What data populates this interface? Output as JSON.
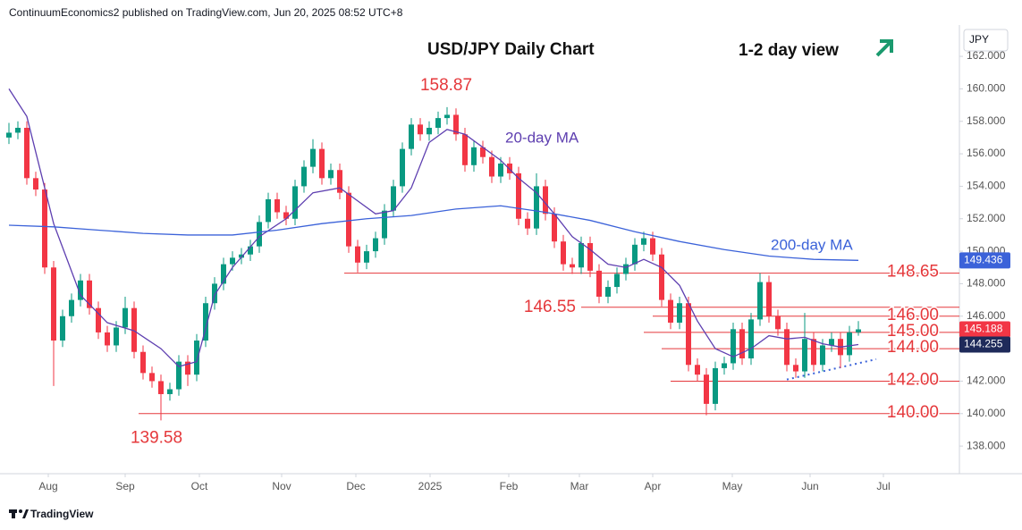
{
  "header": {
    "publisher": "ContinuumEconomics2 published on TradingView.com, Jun 20, 2025 08:52 UTC+8",
    "currency": "JPY"
  },
  "footer": {
    "brand": "TradingView"
  },
  "chart_data": {
    "type": "candlestick",
    "title": "USD/JPY Daily Chart",
    "subtitle": "1-2 day view",
    "up_color": "#089981",
    "down_color": "#f23645",
    "level_color": "#e5383b",
    "xlim": [
      -1,
      106.3
    ],
    "ylim": [
      136.3,
      163.93
    ],
    "yticks": [
      {
        "value": 138,
        "label": "138.000"
      },
      {
        "value": 140,
        "label": "140.000"
      },
      {
        "value": 142,
        "label": "142.000"
      },
      {
        "value": 144,
        "label": "144.000"
      },
      {
        "value": 146,
        "label": "146.000"
      },
      {
        "value": 148,
        "label": "148.000"
      },
      {
        "value": 150,
        "label": "150.000"
      },
      {
        "value": 152,
        "label": "152.000"
      },
      {
        "value": 154,
        "label": "154.000"
      },
      {
        "value": 156,
        "label": "156.000"
      },
      {
        "value": 158,
        "label": "158.000"
      },
      {
        "value": 160,
        "label": "160.000"
      },
      {
        "value": 162,
        "label": "162.000"
      }
    ],
    "xticks": [
      {
        "value": 4.4,
        "label": "Aug"
      },
      {
        "value": 13,
        "label": "Sep"
      },
      {
        "value": 21.3,
        "label": "Oct"
      },
      {
        "value": 30.5,
        "label": "Nov"
      },
      {
        "value": 38.8,
        "label": "Dec"
      },
      {
        "value": 47.1,
        "label": "2025"
      },
      {
        "value": 55.9,
        "label": "Feb"
      },
      {
        "value": 63.8,
        "label": "Mar"
      },
      {
        "value": 72,
        "label": "Apr"
      },
      {
        "value": 80.9,
        "label": "May"
      },
      {
        "value": 89.6,
        "label": "Jun"
      },
      {
        "value": 97.8,
        "label": "Jul"
      }
    ],
    "candles": [
      [
        157.0,
        157.9,
        156.6,
        157.3
      ],
      [
        157.3,
        158.0,
        156.9,
        157.6
      ],
      [
        157.6,
        158.0,
        154.1,
        154.5
      ],
      [
        154.5,
        154.9,
        153.4,
        153.8
      ],
      [
        153.8,
        154.2,
        148.6,
        149.0
      ],
      [
        149.0,
        149.4,
        141.7,
        144.5
      ],
      [
        144.5,
        146.4,
        144.1,
        146.0
      ],
      [
        146.0,
        147.4,
        145.6,
        147.0
      ],
      [
        147.0,
        148.6,
        146.6,
        148.2
      ],
      [
        148.2,
        148.6,
        146.1,
        146.5
      ],
      [
        146.5,
        146.9,
        144.6,
        145.0
      ],
      [
        145.0,
        145.4,
        143.8,
        144.2
      ],
      [
        144.2,
        145.7,
        143.8,
        145.3
      ],
      [
        145.3,
        147.2,
        144.9,
        146.5
      ],
      [
        146.5,
        146.9,
        143.4,
        143.8
      ],
      [
        143.8,
        144.2,
        142.1,
        142.5
      ],
      [
        142.5,
        142.9,
        141.6,
        142.0
      ],
      [
        142.0,
        142.4,
        139.58,
        141.2
      ],
      [
        141.2,
        141.9,
        140.8,
        141.5
      ],
      [
        141.5,
        143.6,
        141.1,
        143.2
      ],
      [
        143.2,
        143.6,
        141.7,
        142.4
      ],
      [
        142.4,
        144.9,
        142.0,
        144.5
      ],
      [
        144.5,
        147.2,
        144.1,
        146.8
      ],
      [
        146.8,
        148.4,
        146.4,
        148.0
      ],
      [
        148.0,
        149.6,
        147.6,
        149.2
      ],
      [
        149.2,
        150.0,
        148.8,
        149.6
      ],
      [
        149.6,
        150.2,
        149.2,
        149.8
      ],
      [
        149.8,
        150.7,
        149.4,
        150.3
      ],
      [
        150.3,
        152.2,
        149.9,
        151.8
      ],
      [
        151.8,
        153.6,
        151.4,
        153.2
      ],
      [
        153.2,
        153.6,
        152.0,
        152.4
      ],
      [
        152.4,
        152.8,
        151.6,
        152.0
      ],
      [
        152.0,
        154.4,
        151.6,
        154.0
      ],
      [
        154.0,
        155.6,
        153.6,
        155.2
      ],
      [
        155.2,
        156.9,
        154.8,
        156.3
      ],
      [
        156.3,
        156.7,
        154.1,
        154.5
      ],
      [
        154.5,
        155.4,
        154.1,
        155.0
      ],
      [
        155.0,
        155.4,
        153.2,
        153.6
      ],
      [
        153.6,
        154.0,
        149.9,
        150.3
      ],
      [
        150.3,
        150.7,
        148.7,
        149.3
      ],
      [
        149.3,
        150.4,
        148.9,
        150.0
      ],
      [
        150.0,
        151.2,
        149.6,
        150.8
      ],
      [
        150.8,
        152.9,
        150.4,
        152.5
      ],
      [
        152.5,
        154.4,
        152.1,
        154.0
      ],
      [
        154.0,
        156.7,
        153.6,
        156.3
      ],
      [
        156.3,
        158.2,
        155.9,
        157.8
      ],
      [
        157.8,
        158.2,
        156.8,
        157.2
      ],
      [
        157.2,
        158.0,
        156.8,
        157.6
      ],
      [
        157.6,
        158.6,
        157.2,
        158.2
      ],
      [
        158.2,
        158.87,
        157.8,
        158.4
      ],
      [
        158.4,
        158.8,
        156.8,
        157.2
      ],
      [
        157.2,
        157.6,
        154.9,
        155.3
      ],
      [
        155.3,
        156.8,
        154.9,
        156.4
      ],
      [
        156.4,
        156.8,
        155.4,
        155.8
      ],
      [
        155.8,
        156.2,
        154.2,
        154.6
      ],
      [
        154.6,
        155.8,
        154.2,
        155.4
      ],
      [
        155.4,
        155.8,
        154.4,
        154.8
      ],
      [
        154.8,
        155.2,
        151.6,
        152.0
      ],
      [
        152.0,
        152.4,
        151.0,
        151.4
      ],
      [
        151.4,
        154.8,
        151.0,
        154.0
      ],
      [
        154.0,
        154.4,
        151.9,
        152.3
      ],
      [
        152.3,
        152.7,
        150.2,
        150.6
      ],
      [
        150.6,
        151.0,
        148.8,
        149.2
      ],
      [
        149.2,
        149.6,
        148.6,
        149.0
      ],
      [
        149.0,
        150.9,
        148.6,
        150.5
      ],
      [
        150.5,
        150.9,
        148.4,
        148.8
      ],
      [
        148.8,
        149.2,
        146.8,
        147.2
      ],
      [
        147.2,
        148.2,
        146.8,
        147.8
      ],
      [
        147.8,
        149.0,
        147.4,
        148.6
      ],
      [
        148.6,
        149.6,
        148.2,
        149.2
      ],
      [
        149.2,
        150.8,
        148.8,
        150.4
      ],
      [
        150.4,
        151.2,
        150.0,
        150.8
      ],
      [
        150.8,
        151.2,
        149.4,
        149.8
      ],
      [
        149.8,
        150.2,
        146.6,
        147.0
      ],
      [
        147.0,
        147.4,
        145.2,
        145.6
      ],
      [
        145.6,
        147.2,
        145.2,
        146.8
      ],
      [
        146.8,
        147.2,
        142.6,
        143.0
      ],
      [
        143.0,
        143.4,
        142.0,
        142.4
      ],
      [
        142.4,
        142.8,
        139.9,
        140.6
      ],
      [
        140.6,
        143.2,
        140.2,
        142.8
      ],
      [
        142.8,
        143.5,
        142.4,
        143.1
      ],
      [
        143.1,
        145.6,
        142.7,
        145.2
      ],
      [
        145.2,
        145.6,
        143.0,
        143.4
      ],
      [
        143.4,
        146.2,
        143.0,
        145.8
      ],
      [
        145.8,
        148.65,
        145.4,
        148.1
      ],
      [
        148.1,
        148.5,
        145.6,
        146.0
      ],
      [
        146.0,
        146.4,
        144.8,
        145.2
      ],
      [
        145.2,
        145.6,
        142.6,
        143.0
      ],
      [
        143.0,
        143.4,
        142.2,
        142.6
      ],
      [
        142.6,
        146.2,
        142.2,
        144.6
      ],
      [
        144.6,
        145.0,
        142.6,
        143.0
      ],
      [
        143.0,
        144.6,
        142.6,
        144.2
      ],
      [
        144.2,
        145.0,
        143.8,
        144.6
      ],
      [
        144.6,
        145.0,
        142.8,
        143.6
      ],
      [
        143.6,
        145.4,
        143.2,
        145.0
      ],
      [
        145.0,
        145.7,
        144.8,
        145.188
      ]
    ],
    "series": [
      {
        "name": "20-day MA",
        "color": "#5e3fb0",
        "x": [
          0,
          2,
          5,
          8,
          11,
          14,
          17,
          19,
          21,
          23,
          25,
          28,
          31,
          34,
          37,
          39,
          41,
          43,
          45,
          47,
          49,
          51,
          53,
          55,
          57,
          59,
          61,
          63,
          65,
          67,
          69,
          71,
          73,
          75,
          77,
          79,
          81,
          83,
          85,
          87,
          89,
          91,
          93,
          95
        ],
        "values": [
          160.0,
          158.3,
          151.7,
          147.3,
          145.6,
          145.1,
          144.0,
          142.9,
          143.2,
          147.3,
          149.0,
          150.9,
          152.0,
          153.6,
          153.9,
          153.1,
          152.3,
          152.5,
          153.9,
          156.7,
          157.5,
          157.2,
          156.4,
          155.6,
          154.5,
          153.6,
          152.3,
          150.9,
          150.1,
          149.2,
          149.0,
          149.5,
          149.0,
          147.9,
          145.7,
          144.0,
          143.5,
          144.0,
          144.8,
          144.6,
          144.7,
          144.3,
          144.1,
          144.255
        ]
      },
      {
        "name": "200-day MA",
        "color": "#3b62d9",
        "x": [
          0,
          5,
          10,
          15,
          20,
          25,
          30,
          35,
          40,
          45,
          50,
          55,
          60,
          65,
          70,
          75,
          80,
          85,
          90,
          95
        ],
        "values": [
          151.6,
          151.5,
          151.3,
          151.1,
          151.0,
          151.0,
          151.3,
          151.7,
          152.0,
          152.2,
          152.6,
          152.8,
          152.4,
          151.9,
          151.2,
          150.6,
          150.1,
          149.7,
          149.5,
          149.436
        ]
      }
    ],
    "levels": [
      {
        "value": 148.65,
        "label": "148.65",
        "from": 37.5
      },
      {
        "value": 146.55,
        "label": "146.55",
        "from": 64
      },
      {
        "value": 146,
        "label": "146.00",
        "from": 72
      },
      {
        "value": 145,
        "label": "145.00",
        "from": 71
      },
      {
        "value": 144,
        "label": "144.00",
        "from": 73
      },
      {
        "value": 142,
        "label": "142.00",
        "from": 74
      },
      {
        "value": 140,
        "label": "140.00",
        "from": 14.5
      }
    ],
    "extremes": [
      {
        "value": 158.87,
        "label": "158.87",
        "at": 49
      },
      {
        "value": 139.58,
        "label": "139.58",
        "at": 17
      }
    ],
    "trendline": {
      "x": [
        87,
        97
      ],
      "values": [
        142.1,
        143.35
      ],
      "color": "#3b62d9"
    },
    "price_labels": [
      {
        "value": 149.436,
        "label": "149.436",
        "color": "#3b62d9"
      },
      {
        "value": 145.188,
        "label": "145.188",
        "color": "#f23645"
      },
      {
        "value": 144.255,
        "label": "144.255",
        "color": "#1e2a5a"
      }
    ]
  }
}
